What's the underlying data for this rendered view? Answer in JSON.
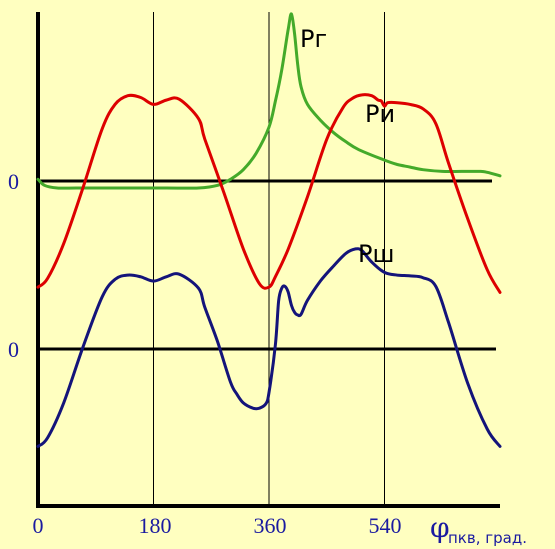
{
  "chart_data": {
    "type": "line",
    "xlabel": "φпкв, град.",
    "xlabel_symbol": "φ",
    "xlabel_rest": "пкв, град.",
    "x_ticks": [
      "0",
      "180",
      "360",
      "540"
    ],
    "xlim": [
      0,
      720
    ],
    "zero_labels": [
      "0",
      "0"
    ],
    "grid": "vertical",
    "colors": {
      "background": "#ffffc0",
      "Pg": "#44aa2a",
      "Pi": "#dd0000",
      "Psh": "#14147a",
      "axis": "#000000",
      "grid": "#000000",
      "ticks": "#1a1aa0"
    },
    "panels": [
      {
        "zero_label": "0",
        "series": [
          {
            "name": "Рг",
            "color": "#44aa2a",
            "x": [
              0,
              10,
              30,
              60,
              100,
              150,
              200,
              250,
              280,
              300,
              320,
              340,
              360,
              370,
              380,
              390,
              395,
              400,
              405,
              410,
              420,
              440,
              460,
              480,
              500,
              540,
              560,
              580,
              600,
              630,
              660,
              690,
              700,
              720
            ],
            "y": [
              0.02,
              -0.05,
              -0.08,
              -0.08,
              -0.08,
              -0.08,
              -0.08,
              -0.08,
              -0.05,
              0.02,
              0.13,
              0.32,
              0.62,
              0.92,
              1.28,
              1.75,
              1.92,
              1.68,
              1.32,
              1.08,
              0.88,
              0.7,
              0.56,
              0.45,
              0.36,
              0.24,
              0.19,
              0.16,
              0.13,
              0.11,
              0.11,
              0.11,
              0.1,
              0.06
            ]
          },
          {
            "name": "Ри",
            "color": "#dd0000",
            "x": [
              0,
              15,
              40,
              70,
              100,
              120,
              140,
              160,
              180,
              200,
              220,
              250,
              260,
              290,
              320,
              345,
              360,
              370,
              390,
              420,
              450,
              475,
              490,
              505,
              520,
              530,
              535,
              540,
              545,
              560,
              580,
              600,
              620,
              640,
              670,
              700,
              720
            ],
            "y": [
              -1.22,
              -1.12,
              -0.72,
              -0.08,
              0.6,
              0.88,
              0.98,
              0.96,
              0.88,
              0.93,
              0.94,
              0.72,
              0.48,
              -0.14,
              -0.78,
              -1.18,
              -1.22,
              -1.1,
              -0.78,
              -0.18,
              0.48,
              0.84,
              0.95,
              0.99,
              0.98,
              0.93,
              0.92,
              0.86,
              0.9,
              0.9,
              0.88,
              0.83,
              0.66,
              0.2,
              -0.44,
              -1.02,
              -1.28
            ]
          }
        ]
      },
      {
        "zero_label": "0",
        "series": [
          {
            "name": "Рш",
            "color": "#14147a",
            "x": [
              0,
              15,
              40,
              70,
              100,
              120,
              140,
              160,
              180,
              200,
              220,
              250,
              260,
              280,
              300,
              310,
              320,
              335,
              345,
              355,
              360,
              370,
              375,
              380,
              385,
              390,
              395,
              400,
              405,
              410,
              420,
              440,
              460,
              480,
              495,
              505,
              520,
              540,
              560,
              580,
              600,
              620,
              640,
              670,
              700,
              720
            ],
            "y": [
              -1.12,
              -1.02,
              -0.62,
              0.02,
              0.6,
              0.8,
              0.85,
              0.83,
              0.78,
              0.83,
              0.86,
              0.7,
              0.48,
              0.08,
              -0.38,
              -0.52,
              -0.62,
              -0.68,
              -0.68,
              -0.63,
              -0.5,
              0.05,
              0.55,
              0.7,
              0.72,
              0.65,
              0.5,
              0.42,
              0.39,
              0.4,
              0.56,
              0.78,
              0.95,
              1.1,
              1.15,
              1.13,
              1.0,
              0.88,
              0.85,
              0.84,
              0.82,
              0.72,
              0.3,
              -0.4,
              -0.92,
              -1.12
            ]
          }
        ]
      }
    ]
  }
}
